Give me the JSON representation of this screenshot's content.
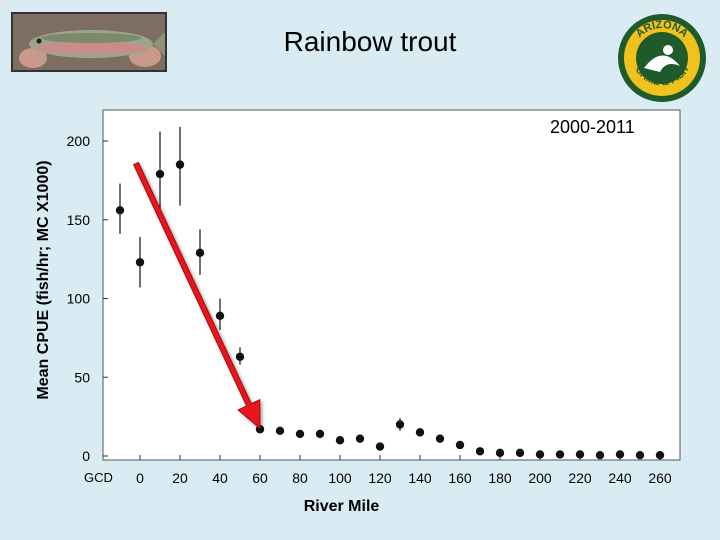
{
  "header": {
    "title": "Rainbow trout",
    "photo_icon": "rainbow-trout-photo-icon",
    "logo_icon": "arizona-game-fish-logo-icon",
    "logo_top_text": "ARIZONA",
    "logo_bottom_text": "GAME & FISH"
  },
  "annotations": {
    "period": "2000-2011",
    "start_marker": "GCD"
  },
  "colors": {
    "background": "#d9ecf3",
    "plot_background": "#ffffff",
    "points": "#111111",
    "arrow_fill": "#e8141b",
    "arrow_outline": "#a00b10",
    "logo_green": "#1f5a2b",
    "logo_yellow": "#f1c21b"
  },
  "chart_data": {
    "type": "scatter",
    "title": "Rainbow trout",
    "xlabel": "River Mile",
    "ylabel": "Mean CPUE (fish/hr; MC X1000)",
    "xlim": [
      -12,
      270
    ],
    "ylim": [
      0,
      220
    ],
    "xticks": [
      0,
      20,
      40,
      60,
      80,
      100,
      120,
      140,
      160,
      180,
      200,
      220,
      240,
      260
    ],
    "yticks": [
      0,
      50,
      100,
      150,
      200
    ],
    "grid": false,
    "legend": "none",
    "error_bars": true,
    "points": [
      {
        "x": -10,
        "y": 156,
        "low": 141,
        "high": 173
      },
      {
        "x": 0,
        "y": 123,
        "low": 107,
        "high": 139
      },
      {
        "x": 10,
        "y": 179,
        "low": 153,
        "high": 206
      },
      {
        "x": 20,
        "y": 185,
        "low": 159,
        "high": 209
      },
      {
        "x": 30,
        "y": 129,
        "low": 115,
        "high": 144
      },
      {
        "x": 40,
        "y": 89,
        "low": 80,
        "high": 100
      },
      {
        "x": 50,
        "y": 63,
        "low": 58,
        "high": 69
      },
      {
        "x": 60,
        "y": 17
      },
      {
        "x": 70,
        "y": 16
      },
      {
        "x": 80,
        "y": 14
      },
      {
        "x": 90,
        "y": 14
      },
      {
        "x": 100,
        "y": 10
      },
      {
        "x": 110,
        "y": 11
      },
      {
        "x": 120,
        "y": 6
      },
      {
        "x": 130,
        "y": 20,
        "low": 16,
        "high": 24
      },
      {
        "x": 140,
        "y": 15
      },
      {
        "x": 150,
        "y": 11
      },
      {
        "x": 160,
        "y": 7
      },
      {
        "x": 170,
        "y": 3
      },
      {
        "x": 180,
        "y": 2
      },
      {
        "x": 190,
        "y": 2
      },
      {
        "x": 200,
        "y": 1
      },
      {
        "x": 210,
        "y": 1
      },
      {
        "x": 220,
        "y": 1
      },
      {
        "x": 230,
        "y": 0.5
      },
      {
        "x": 240,
        "y": 1
      },
      {
        "x": 250,
        "y": 0.5
      },
      {
        "x": 260,
        "y": 0.5
      }
    ],
    "arrow": {
      "from": {
        "x": 0,
        "y": 180
      },
      "to": {
        "x": 60,
        "y": 22
      }
    }
  }
}
